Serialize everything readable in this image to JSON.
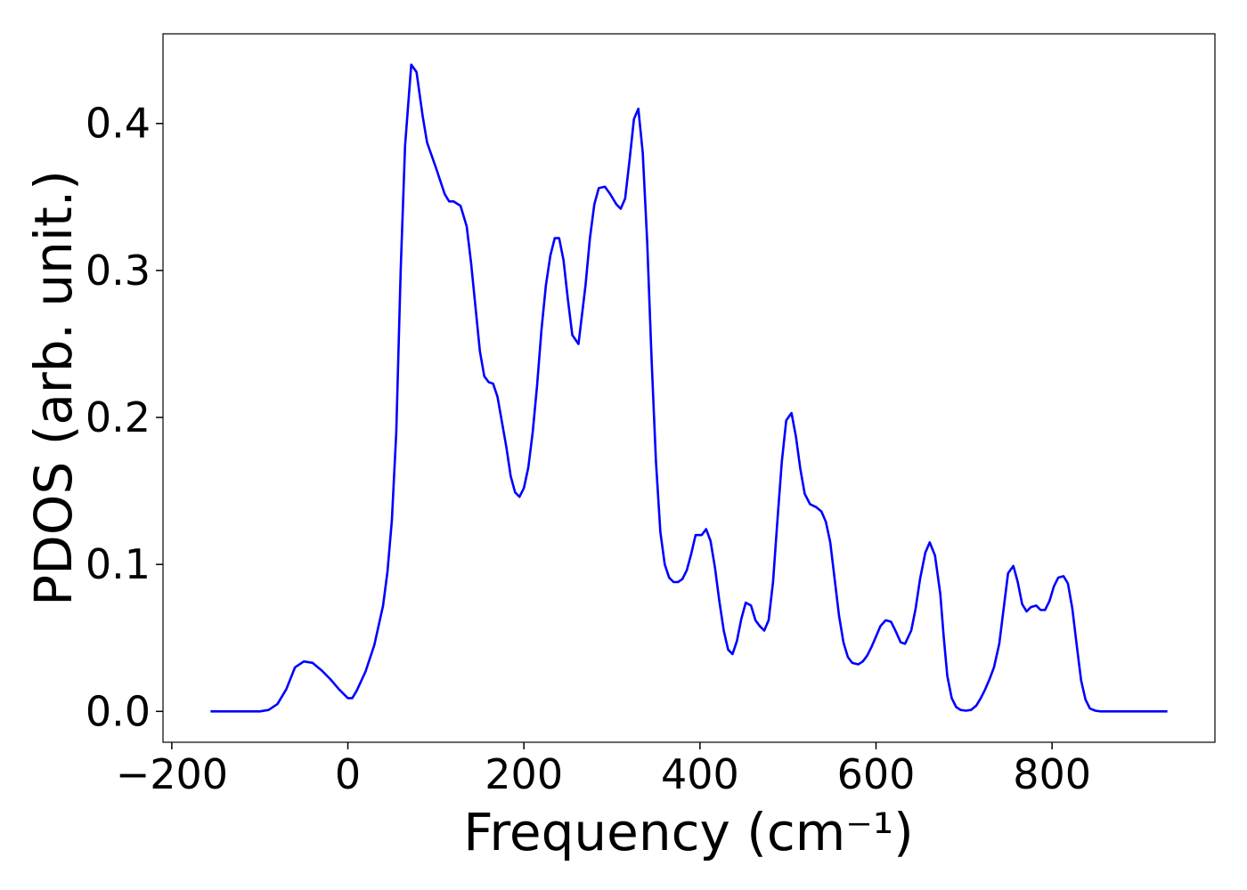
{
  "chart_data": {
    "type": "line",
    "xlabel": "Frequency (cm⁻¹)",
    "ylabel": "PDOS (arb. unit.)",
    "color": "#0000ff",
    "x": [
      -156,
      -100,
      -90,
      -80,
      -70,
      -60,
      -50,
      -40,
      -30,
      -20,
      -10,
      0,
      5,
      10,
      20,
      30,
      40,
      45,
      50,
      55,
      60,
      65,
      72,
      78,
      85,
      90,
      100,
      110,
      115,
      120,
      128,
      135,
      140,
      150,
      155,
      160,
      165,
      170,
      180,
      185,
      190,
      195,
      200,
      205,
      210,
      215,
      220,
      225,
      230,
      235,
      240,
      245,
      250,
      255,
      262,
      265,
      270,
      275,
      280,
      285,
      292,
      298,
      305,
      310,
      315,
      320,
      325,
      330,
      335,
      340,
      345,
      350,
      355,
      360,
      365,
      370,
      375,
      380,
      385,
      390,
      395,
      402,
      407,
      412,
      417,
      422,
      427,
      432,
      437,
      442,
      447,
      452,
      458,
      463,
      468,
      473,
      478,
      483,
      488,
      493,
      498,
      504,
      509,
      514,
      519,
      525,
      532,
      538,
      543,
      548,
      553,
      558,
      563,
      568,
      573,
      580,
      585,
      590,
      595,
      600,
      605,
      611,
      617,
      622,
      628,
      633,
      640,
      645,
      650,
      656,
      661,
      667,
      673,
      677,
      681,
      686,
      691,
      696,
      702,
      708,
      714,
      719,
      724,
      729,
      734,
      740,
      745,
      750,
      756,
      761,
      766,
      771,
      776,
      782,
      787,
      792,
      797,
      802,
      807,
      813,
      818,
      823,
      828,
      833,
      838,
      843,
      849,
      855,
      860,
      866,
      931
    ],
    "values": [
      0,
      0,
      0.001,
      0.005,
      0.015,
      0.03,
      0.034,
      0.033,
      0.028,
      0.022,
      0.015,
      0.009,
      0.009,
      0.014,
      0.027,
      0.045,
      0.072,
      0.095,
      0.13,
      0.19,
      0.3,
      0.385,
      0.44,
      0.435,
      0.405,
      0.387,
      0.37,
      0.352,
      0.347,
      0.347,
      0.344,
      0.33,
      0.305,
      0.245,
      0.228,
      0.224,
      0.223,
      0.214,
      0.18,
      0.16,
      0.149,
      0.146,
      0.152,
      0.166,
      0.19,
      0.222,
      0.26,
      0.29,
      0.31,
      0.322,
      0.322,
      0.307,
      0.28,
      0.256,
      0.25,
      0.265,
      0.29,
      0.322,
      0.345,
      0.356,
      0.357,
      0.352,
      0.345,
      0.342,
      0.349,
      0.375,
      0.403,
      0.41,
      0.38,
      0.32,
      0.24,
      0.17,
      0.122,
      0.1,
      0.091,
      0.088,
      0.088,
      0.09,
      0.096,
      0.107,
      0.12,
      0.12,
      0.124,
      0.116,
      0.098,
      0.075,
      0.055,
      0.042,
      0.039,
      0.048,
      0.063,
      0.074,
      0.072,
      0.062,
      0.058,
      0.055,
      0.062,
      0.088,
      0.13,
      0.17,
      0.198,
      0.203,
      0.187,
      0.165,
      0.148,
      0.141,
      0.139,
      0.136,
      0.129,
      0.115,
      0.09,
      0.065,
      0.047,
      0.037,
      0.033,
      0.032,
      0.034,
      0.038,
      0.044,
      0.051,
      0.058,
      0.062,
      0.061,
      0.055,
      0.047,
      0.046,
      0.055,
      0.07,
      0.09,
      0.108,
      0.115,
      0.106,
      0.08,
      0.05,
      0.024,
      0.009,
      0.003,
      0.001,
      0.0005,
      0.001,
      0.004,
      0.009,
      0.015,
      0.022,
      0.03,
      0.046,
      0.07,
      0.094,
      0.099,
      0.088,
      0.073,
      0.068,
      0.071,
      0.072,
      0.069,
      0.069,
      0.075,
      0.085,
      0.091,
      0.092,
      0.087,
      0.07,
      0.045,
      0.021,
      0.008,
      0.002,
      0.0005,
      0,
      0,
      0,
      0
    ],
    "xlim": [
      -210,
      985
    ],
    "ylim": [
      -0.021,
      0.461
    ],
    "xticks": [
      {
        "value": -200,
        "label": "−200"
      },
      0,
      200,
      400,
      600,
      800
    ],
    "yticks": [
      {
        "value": 0,
        "label": "0.0"
      },
      0.1,
      0.2,
      0.3,
      0.4
    ]
  }
}
